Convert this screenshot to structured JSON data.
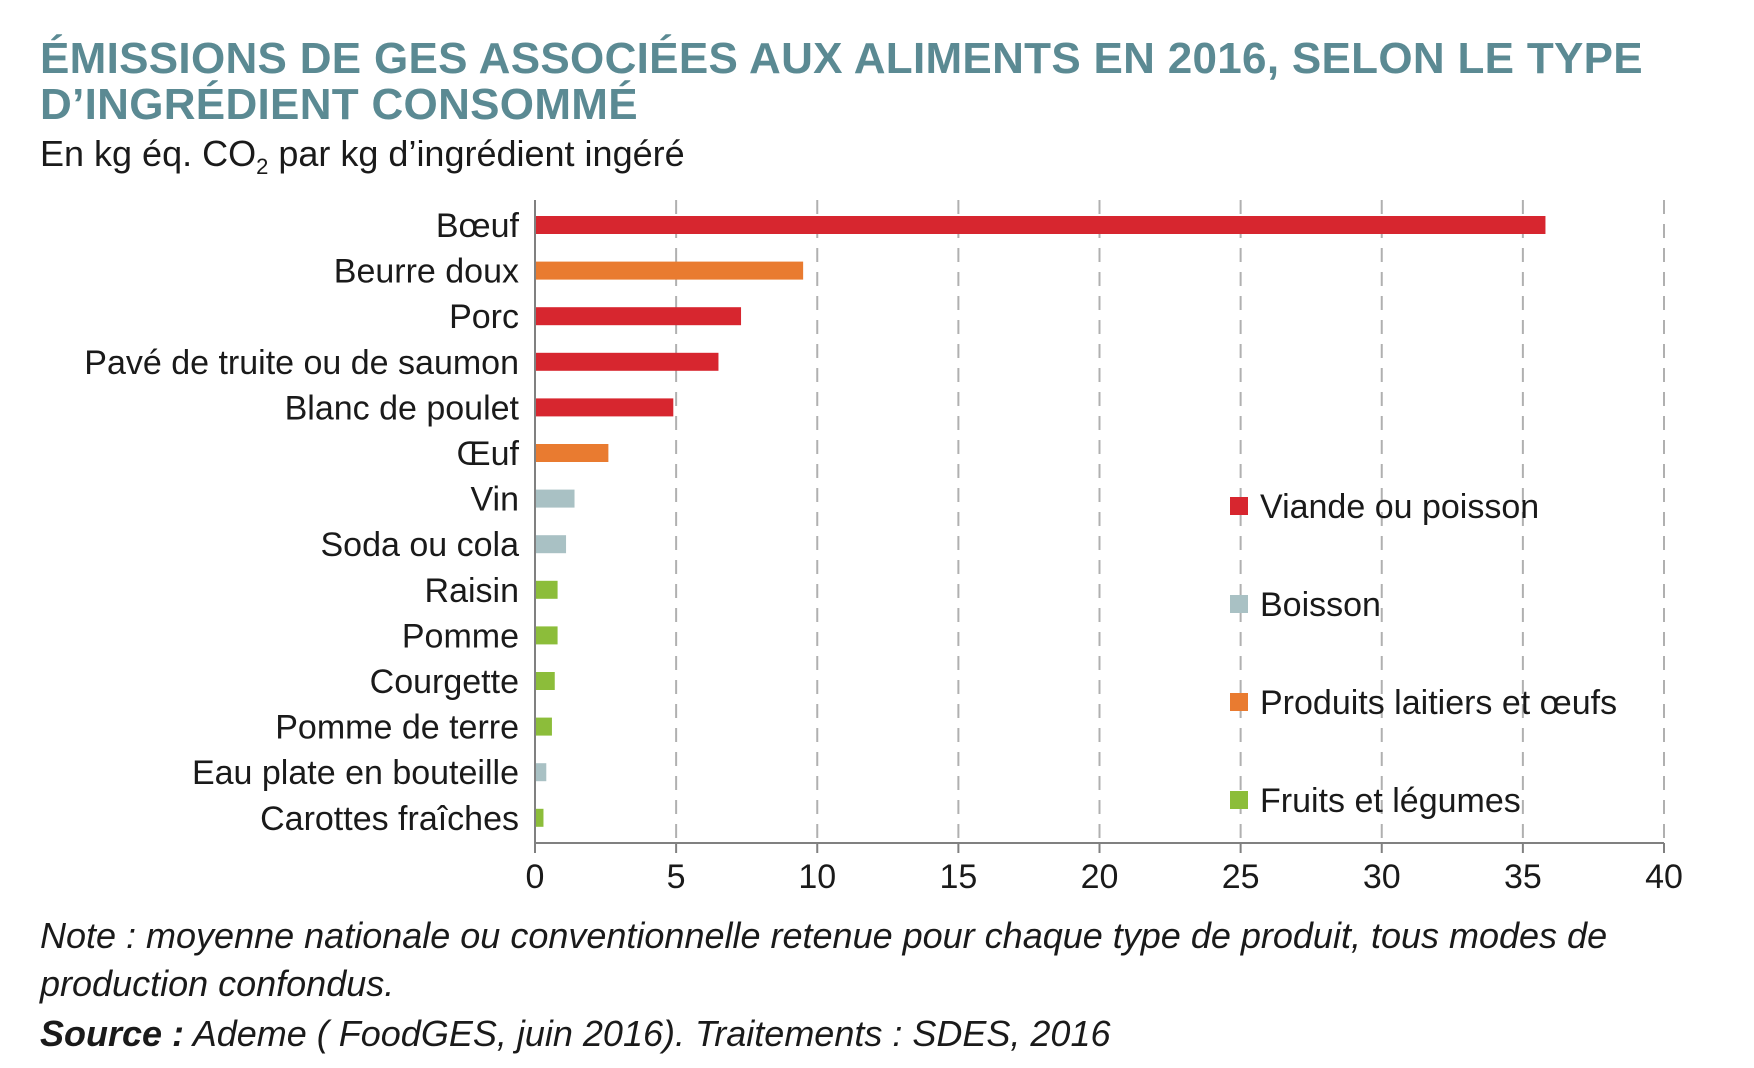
{
  "title": "ÉMISSIONS DE GES ASSOCIÉES AUX ALIMENTS EN 2016, SELON LE TYPE D’INGRÉDIENT CONSOMMÉ",
  "subtitle": {
    "before": "En kg éq. CO",
    "subscript": "2",
    "after": " par kg d’ingrédient ingéré"
  },
  "note": "Note : moyenne nationale ou conventionnelle retenue pour chaque type de produit, tous modes de production confondus.",
  "source": {
    "label": "Source :",
    "text": " Ademe ( FoodGES, juin 2016). Traitements : SDES, 2016"
  },
  "colors": {
    "title": "#5b8a93",
    "viande": "#d7262f",
    "boisson": "#a9c1c4",
    "laitiers": "#e97b30",
    "fruits": "#8cbd3a",
    "axis": "#808080",
    "grid": "#b0b0b0"
  },
  "chart_data": {
    "type": "bar",
    "orientation": "horizontal",
    "categories": [
      "Bœuf",
      "Beurre doux",
      "Porc",
      "Pavé de truite ou de saumon",
      "Blanc de poulet",
      "Œuf",
      "Vin",
      "Soda ou cola",
      "Raisin",
      "Pomme",
      "Courgette",
      "Pomme de terre",
      "Eau plate en bouteille",
      "Carottes fraîches"
    ],
    "values": [
      35.8,
      9.5,
      7.3,
      6.5,
      4.9,
      2.6,
      1.4,
      1.1,
      0.8,
      0.8,
      0.7,
      0.6,
      0.4,
      0.3
    ],
    "groups": [
      "viande",
      "laitiers",
      "viande",
      "viande",
      "viande",
      "laitiers",
      "boisson",
      "boisson",
      "fruits",
      "fruits",
      "fruits",
      "fruits",
      "boisson",
      "fruits"
    ],
    "xlim": [
      0,
      40
    ],
    "xticks": [
      0,
      5,
      10,
      15,
      20,
      25,
      30,
      35,
      40
    ],
    "grid": "vertical dashed",
    "legend_position": "right",
    "legend": [
      {
        "key": "viande",
        "label": "Viande ou poisson"
      },
      {
        "key": "boisson",
        "label": "Boisson"
      },
      {
        "key": "laitiers",
        "label": "Produits laitiers et œufs"
      },
      {
        "key": "fruits",
        "label": "Fruits et légumes"
      }
    ]
  }
}
